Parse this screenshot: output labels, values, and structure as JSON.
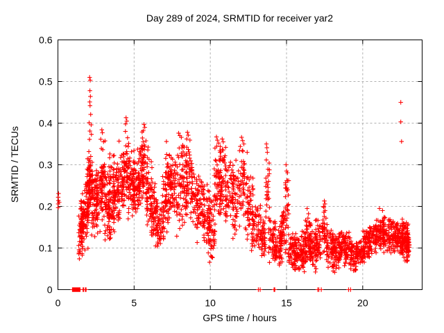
{
  "chart_data": {
    "type": "scatter",
    "title": "Day 289 of 2024, SRMTID for receiver yar2",
    "xlabel": "GPS time / hours",
    "ylabel": "SRMTID / TECUs",
    "xlim": [
      0,
      23.9
    ],
    "ylim": [
      0,
      0.6
    ],
    "xtick_values": [
      0,
      5,
      10,
      15,
      20
    ],
    "xtick_labels": [
      "0",
      "5",
      "10",
      "15",
      "20"
    ],
    "ytick_values": [
      0,
      0.1,
      0.2,
      0.3,
      0.4,
      0.5,
      0.6
    ],
    "ytick_labels": [
      "0",
      "0.1",
      "0.2",
      "0.3",
      "0.4",
      "0.5",
      "0.6"
    ],
    "grid": true,
    "legend": null,
    "marker": {
      "shape": "plus",
      "color": "#ff0000",
      "size": 6.4
    },
    "colors": {
      "grid": "#b0b0b0",
      "axis": "#000000",
      "background": "#ffffff"
    },
    "points": [
      [
        0.02,
        0.197
      ],
      [
        0.02,
        0.206
      ],
      [
        0.03,
        0.214
      ],
      [
        0.02,
        0.222
      ],
      [
        0.04,
        0.231
      ],
      [
        0.08,
        0.21
      ],
      [
        2.08,
        0.51
      ],
      [
        2.12,
        0.503
      ],
      [
        2.1,
        0.478
      ],
      [
        2.13,
        0.464
      ],
      [
        2.09,
        0.451
      ],
      [
        2.11,
        0.442
      ],
      [
        2.15,
        0.421
      ],
      [
        2.05,
        0.401
      ],
      [
        2.18,
        0.396
      ],
      [
        2.1,
        0.381
      ],
      [
        2.2,
        0.373
      ],
      [
        2.07,
        0.361
      ],
      [
        2.88,
        0.384
      ],
      [
        2.92,
        0.377
      ],
      [
        4.47,
        0.413
      ],
      [
        4.52,
        0.405
      ],
      [
        4.44,
        0.398
      ],
      [
        5.65,
        0.397
      ],
      [
        5.7,
        0.39
      ],
      [
        5.6,
        0.382
      ],
      [
        7.12,
        0.356
      ],
      [
        7.92,
        0.376
      ],
      [
        8.0,
        0.37
      ],
      [
        8.1,
        0.366
      ],
      [
        8.5,
        0.378
      ],
      [
        8.55,
        0.371
      ],
      [
        8.45,
        0.362
      ],
      [
        10.4,
        0.367
      ],
      [
        10.46,
        0.359
      ],
      [
        10.55,
        0.352
      ],
      [
        10.78,
        0.362
      ],
      [
        10.85,
        0.355
      ],
      [
        12.05,
        0.366
      ],
      [
        12.12,
        0.358
      ],
      [
        12.2,
        0.35
      ],
      [
        12.42,
        0.33
      ],
      [
        13.68,
        0.35
      ],
      [
        13.71,
        0.341
      ],
      [
        13.74,
        0.33
      ],
      [
        14.97,
        0.3
      ],
      [
        15.0,
        0.285
      ],
      [
        15.02,
        0.262
      ],
      [
        16.35,
        0.195
      ],
      [
        17.48,
        0.213
      ],
      [
        17.52,
        0.206
      ],
      [
        17.45,
        0.198
      ],
      [
        21.1,
        0.195
      ],
      [
        21.3,
        0.19
      ],
      [
        22.5,
        0.45
      ],
      [
        22.5,
        0.403
      ],
      [
        22.55,
        0.356
      ]
    ],
    "zero_marks": [
      0.95,
      0.97,
      0.99,
      1.01,
      1.03,
      1.05,
      1.07,
      1.09,
      1.11,
      1.13,
      1.15,
      1.17,
      1.19,
      1.21,
      1.23,
      1.25,
      1.28,
      1.31,
      1.34,
      1.37,
      1.4,
      1.43,
      1.45,
      1.65,
      1.69,
      1.8,
      1.85,
      13.15,
      13.27,
      14.18,
      14.23,
      17.05,
      17.12,
      17.28,
      19.07,
      19.2
    ],
    "density_clusters": [
      [
        1.35,
        1.62,
        0.07,
        0.2,
        40
      ],
      [
        1.5,
        1.8,
        0.09,
        0.24,
        45
      ],
      [
        1.65,
        1.98,
        0.08,
        0.28,
        50
      ],
      [
        1.9,
        2.12,
        0.14,
        0.33,
        40
      ],
      [
        2.02,
        2.28,
        0.17,
        0.345,
        50
      ],
      [
        2.2,
        2.6,
        0.12,
        0.3,
        55
      ],
      [
        2.5,
        2.95,
        0.11,
        0.32,
        55
      ],
      [
        2.78,
        3.1,
        0.18,
        0.375,
        40
      ],
      [
        3.0,
        3.45,
        0.1,
        0.3,
        60
      ],
      [
        3.3,
        3.72,
        0.11,
        0.34,
        55
      ],
      [
        3.6,
        4.02,
        0.14,
        0.33,
        55
      ],
      [
        3.92,
        4.36,
        0.16,
        0.36,
        55
      ],
      [
        4.3,
        4.72,
        0.19,
        0.405,
        50
      ],
      [
        4.6,
        5.02,
        0.15,
        0.35,
        55
      ],
      [
        4.92,
        5.32,
        0.16,
        0.32,
        50
      ],
      [
        5.2,
        5.62,
        0.18,
        0.36,
        48
      ],
      [
        5.5,
        5.92,
        0.2,
        0.39,
        45
      ],
      [
        5.8,
        6.22,
        0.13,
        0.32,
        50
      ],
      [
        6.1,
        6.52,
        0.1,
        0.26,
        50
      ],
      [
        6.4,
        6.95,
        0.095,
        0.22,
        55
      ],
      [
        6.85,
        7.25,
        0.13,
        0.3,
        45
      ],
      [
        7.05,
        7.45,
        0.15,
        0.33,
        40
      ],
      [
        7.3,
        7.72,
        0.17,
        0.35,
        45
      ],
      [
        7.65,
        8.22,
        0.12,
        0.37,
        55
      ],
      [
        8.15,
        8.52,
        0.14,
        0.35,
        45
      ],
      [
        8.4,
        8.82,
        0.2,
        0.375,
        42
      ],
      [
        8.7,
        9.22,
        0.12,
        0.3,
        50
      ],
      [
        9.1,
        9.62,
        0.1,
        0.3,
        50
      ],
      [
        9.5,
        10.02,
        0.075,
        0.27,
        55
      ],
      [
        9.9,
        10.32,
        0.06,
        0.24,
        45
      ],
      [
        10.25,
        10.68,
        0.15,
        0.365,
        50
      ],
      [
        10.6,
        11.02,
        0.18,
        0.36,
        45
      ],
      [
        10.95,
        11.52,
        0.14,
        0.33,
        58
      ],
      [
        11.4,
        11.92,
        0.11,
        0.32,
        52
      ],
      [
        11.88,
        12.32,
        0.15,
        0.36,
        45
      ],
      [
        12.3,
        12.82,
        0.1,
        0.3,
        50
      ],
      [
        12.7,
        13.32,
        0.08,
        0.24,
        55
      ],
      [
        13.3,
        13.62,
        0.07,
        0.18,
        40
      ],
      [
        13.62,
        13.88,
        0.16,
        0.345,
        25
      ],
      [
        13.82,
        14.32,
        0.06,
        0.18,
        50
      ],
      [
        14.25,
        14.72,
        0.05,
        0.16,
        55
      ],
      [
        14.6,
        15.0,
        0.08,
        0.21,
        45
      ],
      [
        14.9,
        15.16,
        0.13,
        0.3,
        25
      ],
      [
        15.1,
        15.62,
        0.04,
        0.15,
        50
      ],
      [
        15.5,
        16.02,
        0.03,
        0.13,
        55
      ],
      [
        15.92,
        16.32,
        0.04,
        0.15,
        50
      ],
      [
        16.2,
        16.62,
        0.06,
        0.185,
        52
      ],
      [
        16.5,
        17.02,
        0.04,
        0.16,
        55
      ],
      [
        16.9,
        17.26,
        0.06,
        0.175,
        42
      ],
      [
        17.3,
        17.66,
        0.08,
        0.21,
        42
      ],
      [
        17.6,
        18.12,
        0.05,
        0.15,
        55
      ],
      [
        18.0,
        18.52,
        0.04,
        0.14,
        55
      ],
      [
        18.4,
        18.92,
        0.06,
        0.15,
        50
      ],
      [
        18.8,
        19.32,
        0.05,
        0.145,
        50
      ],
      [
        19.2,
        19.72,
        0.03,
        0.12,
        50
      ],
      [
        19.6,
        20.12,
        0.05,
        0.13,
        55
      ],
      [
        20.0,
        20.52,
        0.06,
        0.15,
        55
      ],
      [
        20.4,
        20.92,
        0.08,
        0.17,
        55
      ],
      [
        20.8,
        21.42,
        0.09,
        0.19,
        60
      ],
      [
        21.3,
        21.92,
        0.08,
        0.185,
        60
      ],
      [
        21.8,
        22.32,
        0.08,
        0.175,
        55
      ],
      [
        22.2,
        22.65,
        0.07,
        0.17,
        60
      ],
      [
        22.55,
        23.0,
        0.06,
        0.175,
        90
      ],
      [
        22.9,
        23.06,
        0.08,
        0.14,
        30
      ]
    ]
  }
}
